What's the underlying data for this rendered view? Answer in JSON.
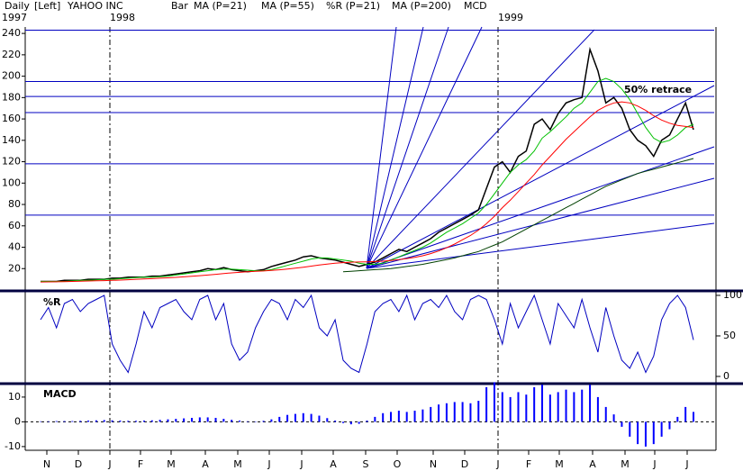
{
  "header": [
    "Daily",
    "[Left]",
    "YAHOO INC"
  ],
  "year_labels": [
    "1997",
    "1998",
    "1999"
  ],
  "months": [
    "N",
    "D",
    "J",
    "F",
    "M",
    "A",
    "M",
    "J",
    "J",
    "A",
    "S",
    "O",
    "N",
    "D",
    "J",
    "F",
    "M",
    "A",
    "M",
    "J",
    "J"
  ],
  "chart_data": [
    {
      "type": "line",
      "ylim": [
        0,
        246
      ],
      "yticks": [
        20,
        40,
        60,
        80,
        100,
        120,
        140,
        160,
        180,
        200,
        220,
        240
      ],
      "hlines": [
        243,
        195,
        181,
        166,
        118,
        70
      ],
      "annotation": "50% retrace",
      "series": [
        {
          "name": "Bar",
          "color": "#000000",
          "values": [
            8,
            8,
            8,
            9,
            9,
            9,
            10,
            10,
            10,
            11,
            11,
            12,
            12,
            12,
            13,
            13,
            14,
            15,
            16,
            17,
            18,
            20,
            19,
            21,
            19,
            18,
            17,
            18,
            19,
            22,
            24,
            26,
            28,
            31,
            32,
            30,
            29,
            28,
            26,
            24,
            22,
            24,
            26,
            30,
            34,
            38,
            36,
            40,
            44,
            48,
            54,
            58,
            62,
            66,
            70,
            75,
            95,
            115,
            120,
            110,
            125,
            130,
            155,
            160,
            150,
            165,
            175,
            178,
            180,
            225,
            205,
            175,
            180,
            170,
            150,
            140,
            135,
            125,
            140,
            145,
            160,
            175,
            150
          ]
        },
        {
          "name": "MA (P=21)",
          "color": "#00c000",
          "values": [
            8,
            8,
            8,
            8,
            8.5,
            9,
            9,
            9.5,
            10,
            10,
            10.5,
            11,
            11.5,
            12,
            12,
            12.5,
            13,
            14,
            15,
            16,
            17,
            18,
            19,
            19.5,
            19.5,
            19,
            18.5,
            18,
            18,
            19,
            21,
            23,
            25,
            27,
            29,
            30,
            30,
            29,
            28,
            27,
            25,
            24,
            24,
            25,
            28,
            31,
            34,
            37,
            40,
            44,
            49,
            54,
            58,
            62,
            67,
            72,
            80,
            90,
            100,
            110,
            117,
            122,
            130,
            142,
            148,
            155,
            162,
            170,
            175,
            185,
            195,
            198,
            195,
            188,
            178,
            165,
            152,
            142,
            138,
            140,
            145,
            152,
            155
          ]
        },
        {
          "name": "MA (P=55)",
          "color": "#ff0000",
          "values": [
            7.5,
            7.6,
            7.7,
            7.8,
            8,
            8.2,
            8.4,
            8.6,
            8.8,
            9,
            9.3,
            9.6,
            10,
            10.3,
            10.6,
            11,
            11.4,
            11.8,
            12.3,
            12.8,
            13.4,
            14,
            14.7,
            15.4,
            16,
            16.5,
            17,
            17.4,
            17.8,
            18.3,
            18.9,
            19.6,
            20.4,
            21.3,
            22.3,
            23.3,
            24.2,
            25,
            25.6,
            26,
            26.2,
            26.4,
            26.6,
            27,
            27.6,
            28.4,
            29.4,
            30.6,
            32,
            34,
            36.5,
            39.5,
            43,
            47,
            51,
            56,
            62,
            69,
            77,
            84,
            92,
            100,
            108,
            117,
            125,
            133,
            141,
            148,
            155,
            162,
            168,
            172,
            175,
            176,
            175,
            172,
            168,
            163,
            159,
            156,
            154,
            153,
            152
          ]
        },
        {
          "name": "MA (P=200)",
          "color": "#004000",
          "values": [
            null,
            null,
            null,
            null,
            null,
            null,
            null,
            null,
            null,
            null,
            null,
            null,
            null,
            null,
            null,
            null,
            null,
            null,
            null,
            null,
            null,
            null,
            null,
            null,
            null,
            null,
            null,
            null,
            null,
            null,
            null,
            null,
            null,
            null,
            null,
            null,
            null,
            null,
            17,
            17.5,
            18,
            18.5,
            19,
            19.5,
            20,
            21,
            22,
            23,
            24,
            25.5,
            27,
            28.5,
            30,
            32,
            34,
            36,
            39,
            42,
            45,
            49,
            53,
            57,
            61,
            65,
            69,
            73,
            77,
            81,
            85,
            89,
            93,
            97,
            100,
            103,
            106,
            109,
            111,
            113,
            115,
            117,
            119,
            121,
            123
          ]
        }
      ]
    },
    {
      "type": "line",
      "title": "%R",
      "ylim": [
        -7.8,
        103.3
      ],
      "yticks": [
        0,
        50,
        100
      ],
      "series": [
        {
          "name": "%R (P=21)",
          "color": "#0000c0",
          "values": [
            70,
            85,
            60,
            90,
            95,
            80,
            90,
            95,
            100,
            40,
            20,
            5,
            40,
            80,
            60,
            85,
            90,
            95,
            80,
            70,
            95,
            100,
            70,
            90,
            40,
            20,
            30,
            60,
            80,
            95,
            90,
            70,
            95,
            85,
            100,
            60,
            50,
            70,
            20,
            10,
            5,
            40,
            80,
            90,
            95,
            80,
            100,
            70,
            90,
            95,
            85,
            100,
            80,
            70,
            95,
            100,
            95,
            70,
            40,
            90,
            60,
            80,
            100,
            70,
            40,
            90,
            75,
            60,
            95,
            60,
            30,
            85,
            50,
            20,
            10,
            30,
            5,
            25,
            70,
            90,
            100,
            85,
            45
          ]
        }
      ]
    },
    {
      "type": "bar",
      "title": "MACD",
      "ylim": [
        -11.5,
        14.7
      ],
      "yticks": [
        -10,
        0,
        10
      ],
      "series": [
        {
          "name": "MCD",
          "color": "#0000ff",
          "values": [
            0.2,
            0.2,
            0.3,
            0.3,
            0.3,
            0.4,
            0.5,
            0.6,
            0.7,
            0.6,
            0.5,
            0.4,
            0.4,
            0.5,
            0.6,
            0.8,
            1.0,
            1.2,
            1.4,
            1.6,
            1.8,
            1.8,
            1.6,
            1.2,
            0.8,
            0.5,
            0.2,
            0.1,
            0.4,
            1.0,
            2.0,
            2.8,
            3.2,
            3.5,
            3.2,
            2.5,
            1.5,
            0.5,
            -0.5,
            -1.0,
            -0.8,
            0.5,
            2.0,
            3.5,
            4.0,
            4.5,
            4.0,
            4.5,
            5.0,
            6.0,
            7.0,
            7.5,
            8.0,
            8.0,
            7.5,
            8.5,
            14,
            16,
            12,
            10,
            12,
            11,
            14,
            15,
            11,
            12,
            13,
            12,
            13,
            15,
            10,
            6,
            3,
            -2,
            -6,
            -9,
            -10,
            -9,
            -6,
            -3,
            2,
            6,
            4
          ]
        }
      ]
    }
  ]
}
